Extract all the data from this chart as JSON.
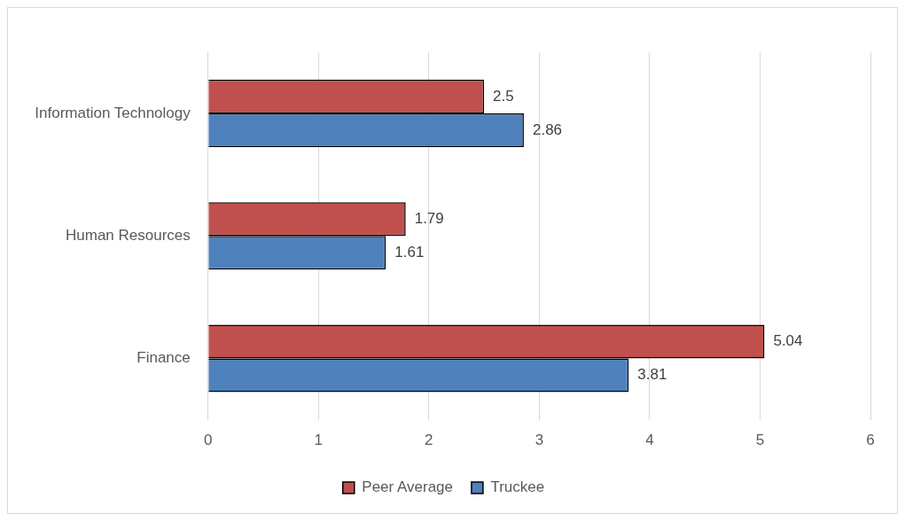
{
  "chart_data": {
    "type": "bar",
    "orientation": "horizontal",
    "categories": [
      "Information Technology",
      "Human Resources",
      "Finance"
    ],
    "series": [
      {
        "name": "Peer Average",
        "color": "#c0504d",
        "values": [
          2.5,
          1.79,
          5.04
        ]
      },
      {
        "name": "Truckee",
        "color": "#4f81bd",
        "values": [
          2.86,
          1.61,
          3.81
        ]
      }
    ],
    "xlim": [
      0,
      6
    ],
    "xticks": [
      0,
      1,
      2,
      3,
      4,
      5,
      6
    ],
    "grid": "x",
    "legend": "bottom",
    "data_labels": true
  }
}
